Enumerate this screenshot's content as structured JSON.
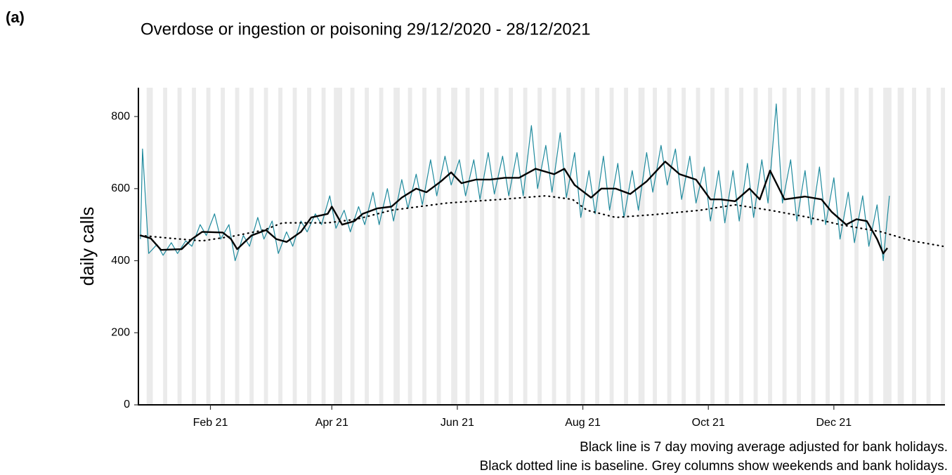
{
  "chart_data": {
    "type": "line",
    "panel_label": "(a)",
    "title": "Overdose or ingestion or poisoning 29/12/2020 - 28/12/2021",
    "y_label": "daily calls",
    "notes": [
      "Black line is 7 day moving average adjusted for bank holidays.",
      "Black dotted line is baseline. Grey columns show weekends and bank holidays."
    ],
    "xlim": [
      -1,
      391
    ],
    "xticks": [
      {
        "value": 34,
        "label": "Feb 21"
      },
      {
        "value": 93,
        "label": "Apr 21"
      },
      {
        "value": 154,
        "label": "Jun 21"
      },
      {
        "value": 215,
        "label": "Aug 21"
      },
      {
        "value": 276,
        "label": "Oct 21"
      },
      {
        "value": 337,
        "label": "Dec 21"
      }
    ],
    "ylim": [
      0,
      880
    ],
    "yticks": [
      0,
      200,
      400,
      600,
      800
    ],
    "shade_color": "#ebebeb",
    "shaded_ranges": [
      [
        3,
        6
      ],
      [
        11,
        13
      ],
      [
        18,
        20
      ],
      [
        25,
        27
      ],
      [
        32,
        34
      ],
      [
        39,
        41
      ],
      [
        46,
        48
      ],
      [
        53,
        55
      ],
      [
        60,
        62
      ],
      [
        67,
        69
      ],
      [
        74,
        76
      ],
      [
        81,
        83
      ],
      [
        88,
        90
      ],
      [
        94,
        98
      ],
      [
        102,
        104
      ],
      [
        109,
        111
      ],
      [
        116,
        118
      ],
      [
        123,
        126
      ],
      [
        130,
        132
      ],
      [
        137,
        139
      ],
      [
        144,
        146
      ],
      [
        151,
        154
      ],
      [
        158,
        160
      ],
      [
        165,
        167
      ],
      [
        172,
        174
      ],
      [
        179,
        181
      ],
      [
        186,
        188
      ],
      [
        193,
        195
      ],
      [
        200,
        202
      ],
      [
        207,
        209
      ],
      [
        214,
        216
      ],
      [
        221,
        223
      ],
      [
        228,
        230
      ],
      [
        235,
        237
      ],
      [
        242,
        245
      ],
      [
        249,
        251
      ],
      [
        256,
        258
      ],
      [
        263,
        265
      ],
      [
        270,
        272
      ],
      [
        277,
        279
      ],
      [
        284,
        286
      ],
      [
        291,
        293
      ],
      [
        298,
        300
      ],
      [
        305,
        307
      ],
      [
        312,
        314
      ],
      [
        319,
        321
      ],
      [
        326,
        328
      ],
      [
        333,
        335
      ],
      [
        340,
        342
      ],
      [
        347,
        349
      ],
      [
        354,
        356
      ],
      [
        361,
        365
      ],
      [
        368,
        371
      ],
      [
        375,
        377
      ],
      [
        382,
        384
      ],
      [
        389,
        391
      ]
    ],
    "series": [
      {
        "color": "#1f8a9d",
        "width": 1.2,
        "style": "solid",
        "x": [
          0,
          1,
          4,
          8,
          11,
          15,
          18,
          22,
          25,
          29,
          32,
          36,
          39,
          43,
          46,
          50,
          53,
          57,
          60,
          64,
          67,
          71,
          74,
          78,
          81,
          85,
          88,
          92,
          95,
          99,
          102,
          106,
          109,
          113,
          116,
          120,
          123,
          127,
          130,
          134,
          137,
          141,
          144,
          148,
          151,
          155,
          158,
          162,
          165,
          169,
          172,
          176,
          179,
          183,
          186,
          190,
          193,
          197,
          200,
          204,
          207,
          211,
          214,
          218,
          221,
          225,
          228,
          232,
          235,
          239,
          242,
          246,
          249,
          253,
          256,
          260,
          263,
          267,
          270,
          274,
          277,
          281,
          284,
          288,
          291,
          295,
          298,
          302,
          305,
          309,
          312,
          316,
          319,
          323,
          326,
          330,
          333,
          337,
          340,
          344,
          347,
          351,
          354,
          358,
          361,
          364
        ],
        "values": [
          460,
          710,
          420,
          445,
          415,
          450,
          420,
          455,
          440,
          500,
          470,
          530,
          460,
          500,
          400,
          470,
          440,
          520,
          460,
          510,
          420,
          480,
          440,
          510,
          480,
          530,
          500,
          580,
          490,
          540,
          480,
          550,
          500,
          590,
          500,
          600,
          510,
          625,
          545,
          640,
          555,
          680,
          580,
          690,
          610,
          680,
          580,
          680,
          570,
          700,
          585,
          690,
          580,
          700,
          580,
          775,
          600,
          720,
          590,
          755,
          575,
          700,
          520,
          650,
          530,
          690,
          540,
          670,
          520,
          650,
          540,
          700,
          590,
          720,
          610,
          710,
          570,
          690,
          560,
          660,
          510,
          650,
          505,
          650,
          510,
          670,
          520,
          680,
          560,
          835,
          560,
          680,
          510,
          650,
          500,
          660,
          500,
          630,
          460,
          590,
          450,
          580,
          440,
          555,
          400,
          580
        ]
      },
      {
        "color": "#000000",
        "width": 2.4,
        "style": "solid",
        "x": [
          0,
          5,
          10,
          20,
          25,
          30,
          40,
          44,
          47,
          54,
          61,
          66,
          71,
          78,
          83,
          91,
          93,
          98,
          104,
          108,
          115,
          122,
          127,
          134,
          139,
          146,
          151,
          156,
          163,
          170,
          177,
          184,
          192,
          201,
          206,
          211,
          219,
          224,
          231,
          238,
          246,
          255,
          262,
          270,
          277,
          282,
          289,
          296,
          301,
          306,
          313,
          323,
          331,
          336,
          343,
          348,
          353,
          358,
          361,
          363
        ],
        "values": [
          470,
          462,
          430,
          432,
          460,
          480,
          478,
          460,
          432,
          470,
          485,
          460,
          452,
          480,
          520,
          530,
          550,
          500,
          510,
          530,
          545,
          550,
          575,
          600,
          590,
          620,
          645,
          615,
          625,
          625,
          630,
          630,
          655,
          640,
          655,
          610,
          575,
          600,
          600,
          585,
          620,
          675,
          640,
          625,
          570,
          570,
          565,
          600,
          570,
          650,
          570,
          578,
          570,
          535,
          500,
          515,
          510,
          460,
          420,
          435
        ]
      },
      {
        "color": "#000000",
        "width": 2.2,
        "style": "dotted",
        "x": [
          0,
          15,
          30,
          45,
          60,
          69,
          91,
          105,
          122,
          149,
          175,
          197,
          210,
          217,
          231,
          250,
          272,
          289,
          306,
          325,
          340,
          360,
          375,
          390
        ],
        "values": [
          470,
          462,
          455,
          468,
          485,
          505,
          505,
          515,
          540,
          560,
          570,
          580,
          570,
          540,
          520,
          528,
          540,
          555,
          540,
          520,
          500,
          480,
          455,
          440
        ]
      }
    ]
  }
}
